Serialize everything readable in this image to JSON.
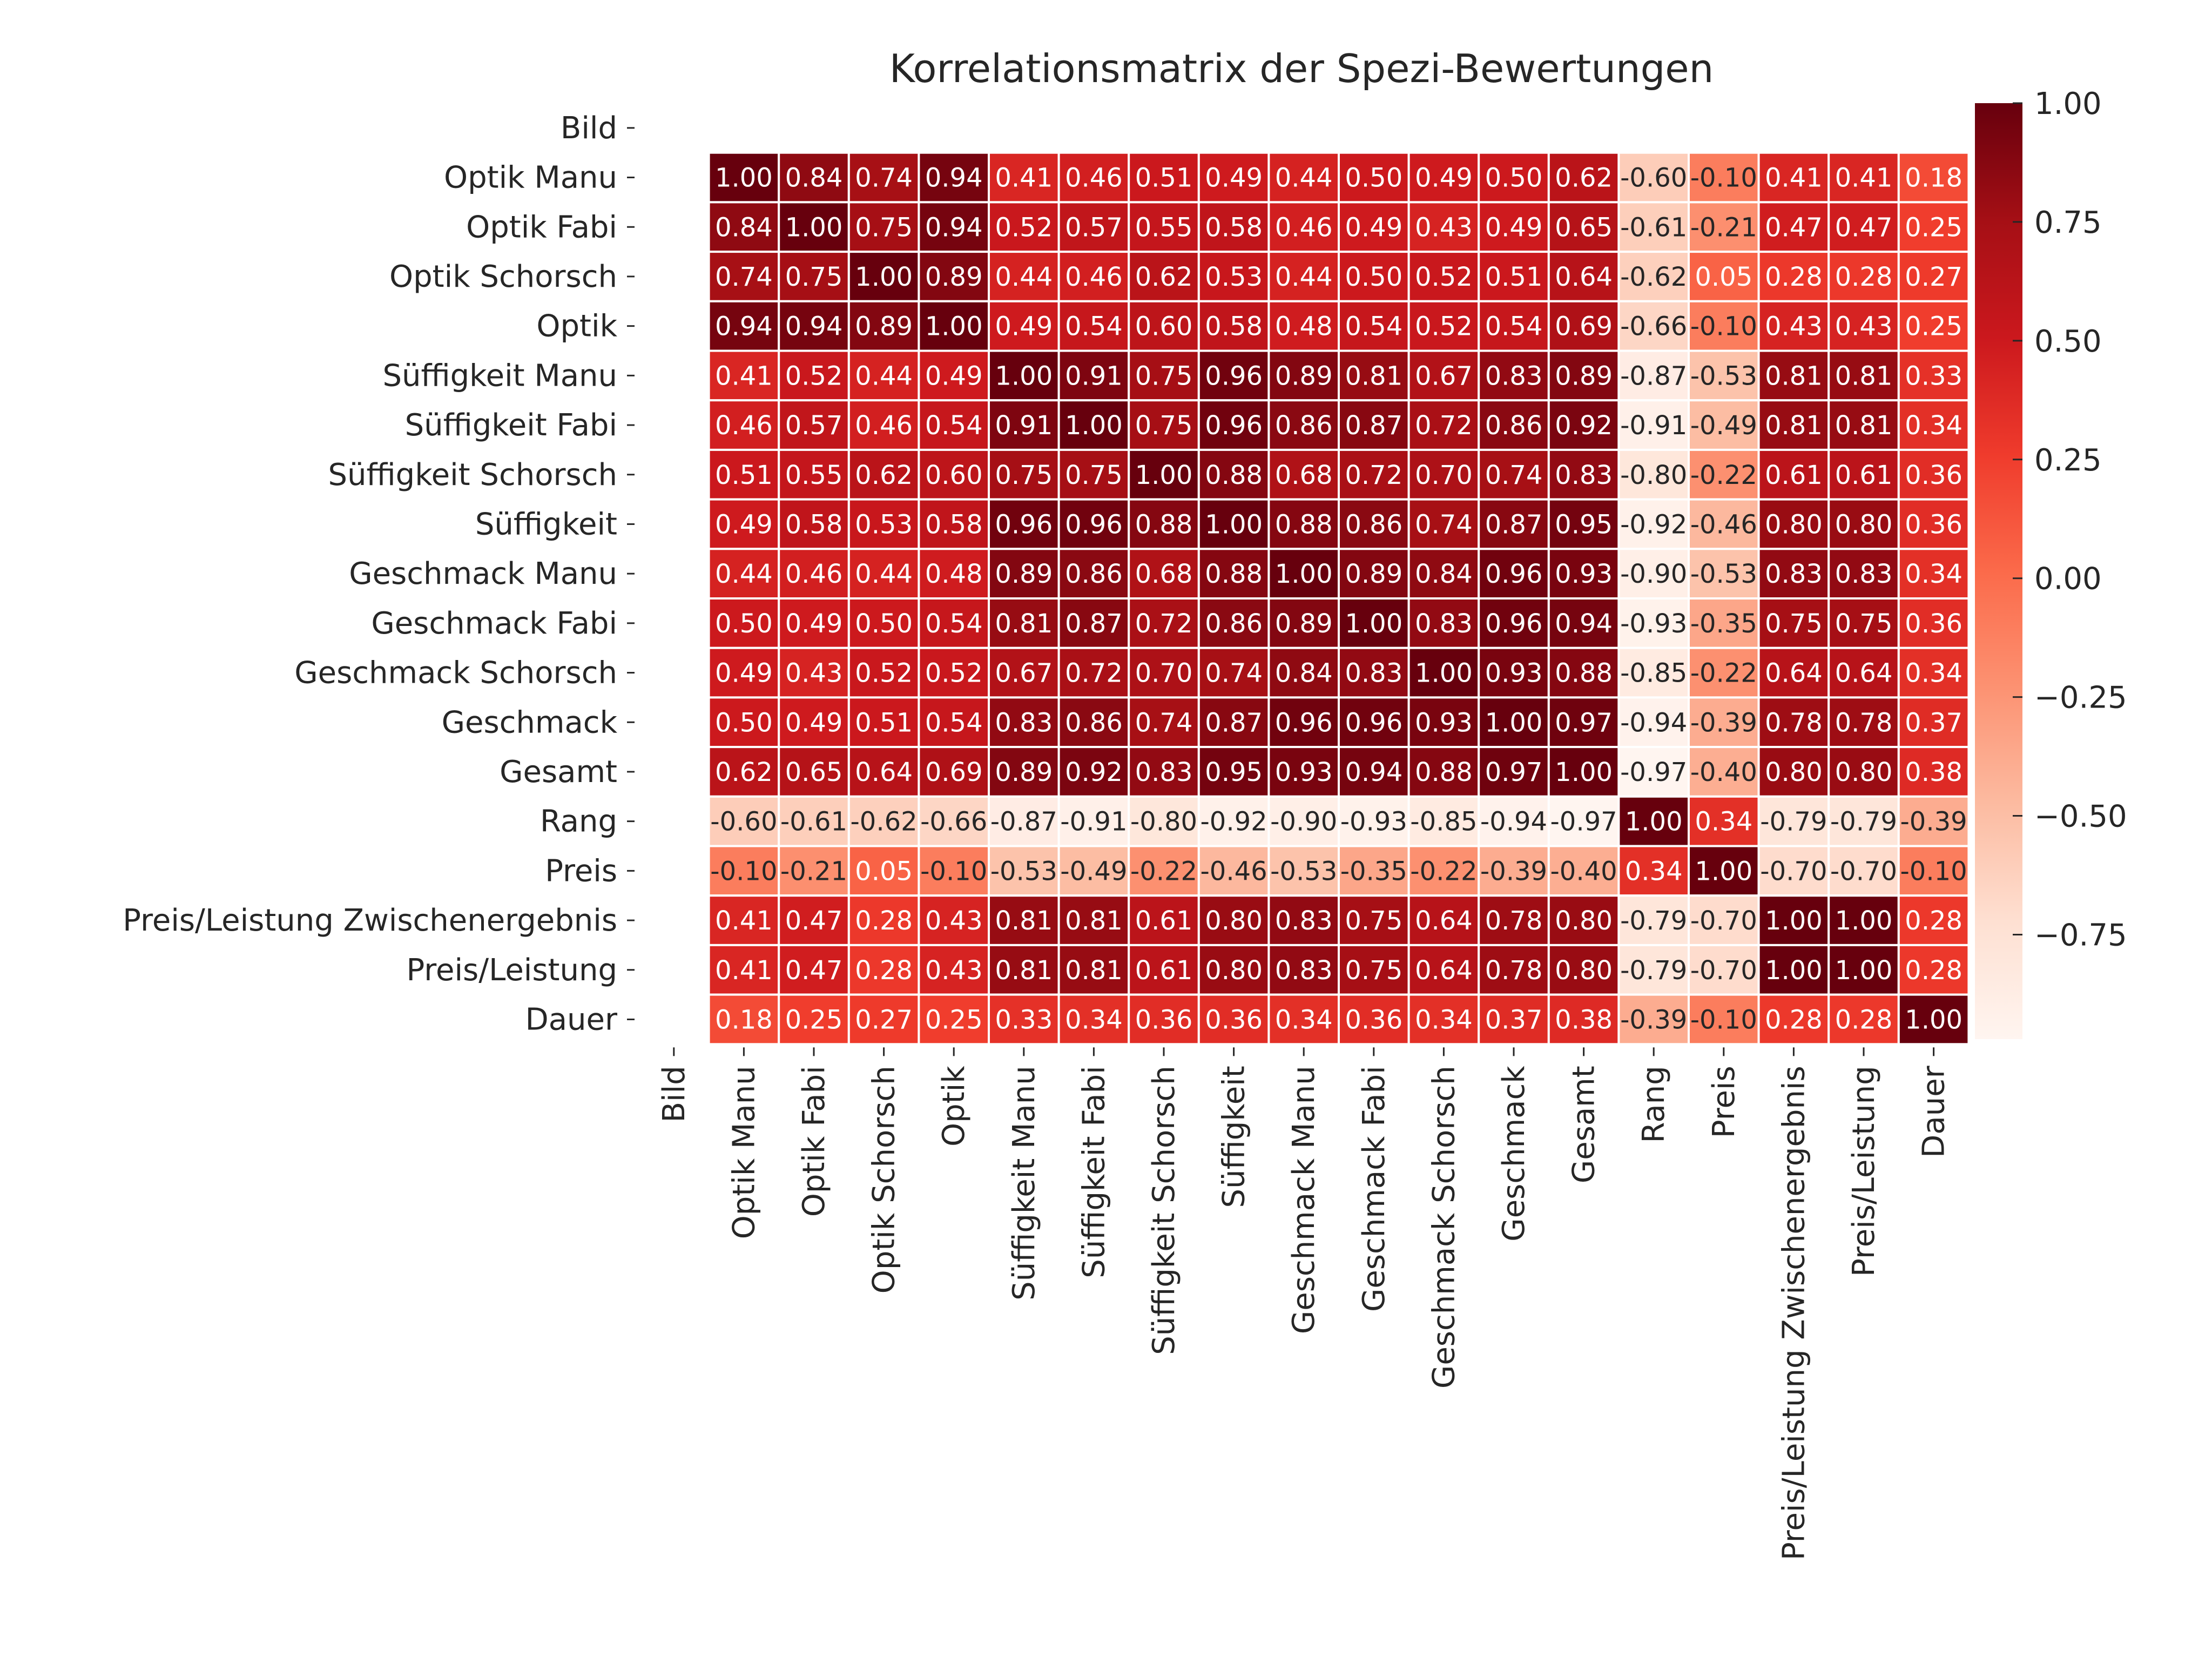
{
  "chart_data": {
    "type": "heatmap",
    "title": "Korrelationsmatrix der Spezi-Bewertungen",
    "xlabel": "",
    "ylabel": "",
    "colormap": "Reds",
    "colormap_stops": [
      "#fff5f0",
      "#fee0d2",
      "#fcbba1",
      "#fc9272",
      "#fb6a4a",
      "#ef3b2c",
      "#cb181d",
      "#a50f15",
      "#67000d"
    ],
    "value_range": [
      -0.97,
      1.0
    ],
    "annotation_format": "0.00",
    "grid_line_color": "#ffffff",
    "labels": [
      "Bild",
      "Optik Manu",
      "Optik Fabi",
      "Optik Schorsch",
      "Optik",
      "Süffigkeit Manu",
      "Süffigkeit Fabi",
      "Süffigkeit Schorsch",
      "Süffigkeit",
      "Geschmack Manu",
      "Geschmack Fabi",
      "Geschmack Schorsch",
      "Geschmack",
      "Gesamt",
      "Rang",
      "Preis",
      "Preis/Leistung Zwischenergebnis",
      "Preis/Leistung",
      "Dauer"
    ],
    "matrix": [
      [
        null,
        null,
        null,
        null,
        null,
        null,
        null,
        null,
        null,
        null,
        null,
        null,
        null,
        null,
        null,
        null,
        null,
        null,
        null
      ],
      [
        null,
        1.0,
        0.84,
        0.74,
        0.94,
        0.41,
        0.46,
        0.51,
        0.49,
        0.44,
        0.5,
        0.49,
        0.5,
        0.62,
        -0.6,
        -0.1,
        0.41,
        0.41,
        0.18
      ],
      [
        null,
        0.84,
        1.0,
        0.75,
        0.94,
        0.52,
        0.57,
        0.55,
        0.58,
        0.46,
        0.49,
        0.43,
        0.49,
        0.65,
        -0.61,
        -0.21,
        0.47,
        0.47,
        0.25
      ],
      [
        null,
        0.74,
        0.75,
        1.0,
        0.89,
        0.44,
        0.46,
        0.62,
        0.53,
        0.44,
        0.5,
        0.52,
        0.51,
        0.64,
        -0.62,
        0.05,
        0.28,
        0.28,
        0.27
      ],
      [
        null,
        0.94,
        0.94,
        0.89,
        1.0,
        0.49,
        0.54,
        0.6,
        0.58,
        0.48,
        0.54,
        0.52,
        0.54,
        0.69,
        -0.66,
        -0.1,
        0.43,
        0.43,
        0.25
      ],
      [
        null,
        0.41,
        0.52,
        0.44,
        0.49,
        1.0,
        0.91,
        0.75,
        0.96,
        0.89,
        0.81,
        0.67,
        0.83,
        0.89,
        -0.87,
        -0.53,
        0.81,
        0.81,
        0.33
      ],
      [
        null,
        0.46,
        0.57,
        0.46,
        0.54,
        0.91,
        1.0,
        0.75,
        0.96,
        0.86,
        0.87,
        0.72,
        0.86,
        0.92,
        -0.91,
        -0.49,
        0.81,
        0.81,
        0.34
      ],
      [
        null,
        0.51,
        0.55,
        0.62,
        0.6,
        0.75,
        0.75,
        1.0,
        0.88,
        0.68,
        0.72,
        0.7,
        0.74,
        0.83,
        -0.8,
        -0.22,
        0.61,
        0.61,
        0.36
      ],
      [
        null,
        0.49,
        0.58,
        0.53,
        0.58,
        0.96,
        0.96,
        0.88,
        1.0,
        0.88,
        0.86,
        0.74,
        0.87,
        0.95,
        -0.92,
        -0.46,
        0.8,
        0.8,
        0.36
      ],
      [
        null,
        0.44,
        0.46,
        0.44,
        0.48,
        0.89,
        0.86,
        0.68,
        0.88,
        1.0,
        0.89,
        0.84,
        0.96,
        0.93,
        -0.9,
        -0.53,
        0.83,
        0.83,
        0.34
      ],
      [
        null,
        0.5,
        0.49,
        0.5,
        0.54,
        0.81,
        0.87,
        0.72,
        0.86,
        0.89,
        1.0,
        0.83,
        0.96,
        0.94,
        -0.93,
        -0.35,
        0.75,
        0.75,
        0.36
      ],
      [
        null,
        0.49,
        0.43,
        0.52,
        0.52,
        0.67,
        0.72,
        0.7,
        0.74,
        0.84,
        0.83,
        1.0,
        0.93,
        0.88,
        -0.85,
        -0.22,
        0.64,
        0.64,
        0.34
      ],
      [
        null,
        0.5,
        0.49,
        0.51,
        0.54,
        0.83,
        0.86,
        0.74,
        0.87,
        0.96,
        0.96,
        0.93,
        1.0,
        0.97,
        -0.94,
        -0.39,
        0.78,
        0.78,
        0.37
      ],
      [
        null,
        0.62,
        0.65,
        0.64,
        0.69,
        0.89,
        0.92,
        0.83,
        0.95,
        0.93,
        0.94,
        0.88,
        0.97,
        1.0,
        -0.97,
        -0.4,
        0.8,
        0.8,
        0.38
      ],
      [
        null,
        -0.6,
        -0.61,
        -0.62,
        -0.66,
        -0.87,
        -0.91,
        -0.8,
        -0.92,
        -0.9,
        -0.93,
        -0.85,
        -0.94,
        -0.97,
        1.0,
        0.34,
        -0.79,
        -0.79,
        -0.39
      ],
      [
        null,
        -0.1,
        -0.21,
        0.05,
        -0.1,
        -0.53,
        -0.49,
        -0.22,
        -0.46,
        -0.53,
        -0.35,
        -0.22,
        -0.39,
        -0.4,
        0.34,
        1.0,
        -0.7,
        -0.7,
        -0.1
      ],
      [
        null,
        0.41,
        0.47,
        0.28,
        0.43,
        0.81,
        0.81,
        0.61,
        0.8,
        0.83,
        0.75,
        0.64,
        0.78,
        0.8,
        -0.79,
        -0.7,
        1.0,
        1.0,
        0.28
      ],
      [
        null,
        0.41,
        0.47,
        0.28,
        0.43,
        0.81,
        0.81,
        0.61,
        0.8,
        0.83,
        0.75,
        0.64,
        0.78,
        0.8,
        -0.79,
        -0.7,
        1.0,
        1.0,
        0.28
      ],
      [
        null,
        0.18,
        0.25,
        0.27,
        0.25,
        0.33,
        0.34,
        0.36,
        0.36,
        0.34,
        0.36,
        0.34,
        0.37,
        0.38,
        -0.39,
        -0.1,
        0.28,
        0.28,
        1.0
      ]
    ],
    "colorbar": {
      "ticks": [
        1.0,
        0.75,
        0.5,
        0.25,
        0.0,
        -0.25,
        -0.5,
        -0.75
      ],
      "tick_labels": [
        "1.00",
        "0.75",
        "0.50",
        "0.25",
        "0.00",
        "−0.25",
        "−0.50",
        "−0.75"
      ],
      "placement": "right"
    },
    "legend": null
  }
}
